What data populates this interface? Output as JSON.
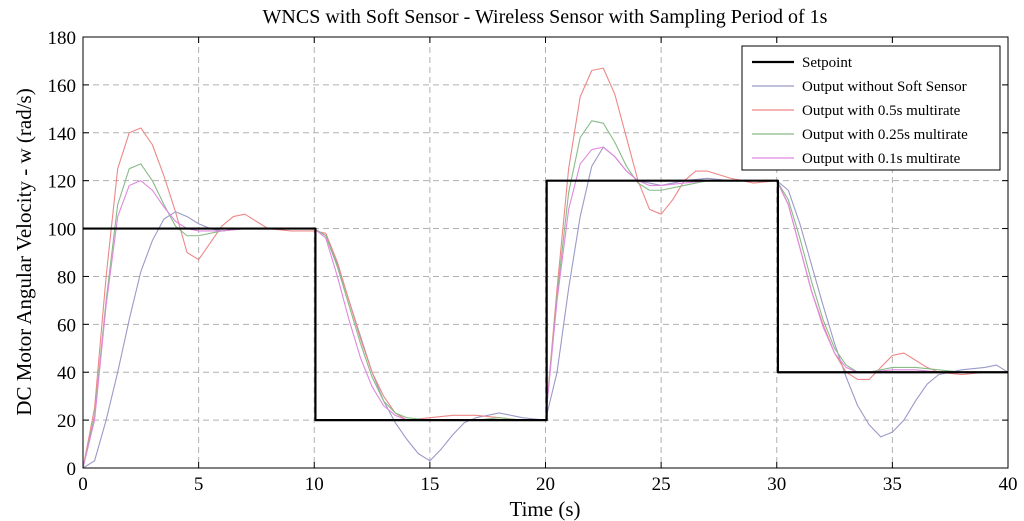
{
  "chart_data": {
    "type": "line",
    "title": "WNCS with Soft Sensor - Wireless Sensor with Sampling Period of 1s",
    "xlabel": "Time (s)",
    "ylabel": "DC Motor Angular Velocity - w (rad/s)",
    "xlim": [
      0,
      40
    ],
    "ylim": [
      0,
      180
    ],
    "xticks": [
      0,
      5,
      10,
      15,
      20,
      25,
      30,
      35,
      40
    ],
    "yticks": [
      0,
      20,
      40,
      60,
      80,
      100,
      120,
      140,
      160,
      180
    ],
    "grid": true,
    "legend_position": "top-right",
    "series": [
      {
        "name": "Setpoint",
        "color": "#000000",
        "points": [
          [
            0,
            100
          ],
          [
            10.05,
            100
          ],
          [
            10.05,
            20
          ],
          [
            20.05,
            20
          ],
          [
            20.05,
            120
          ],
          [
            30.05,
            120
          ],
          [
            30.05,
            40
          ],
          [
            40,
            40
          ]
        ]
      },
      {
        "name": "Output without Soft Sensor",
        "color": "#9a9ac8",
        "points": [
          [
            0,
            0
          ],
          [
            0.5,
            3
          ],
          [
            1,
            20
          ],
          [
            1.5,
            40
          ],
          [
            2,
            62
          ],
          [
            2.5,
            82
          ],
          [
            3,
            95
          ],
          [
            3.5,
            104
          ],
          [
            4,
            107
          ],
          [
            4.5,
            105
          ],
          [
            5,
            102
          ],
          [
            5.5,
            100
          ],
          [
            6,
            99
          ],
          [
            7,
            100
          ],
          [
            8,
            100
          ],
          [
            9,
            100
          ],
          [
            10,
            100
          ],
          [
            10.5,
            97
          ],
          [
            11,
            85
          ],
          [
            11.5,
            70
          ],
          [
            12,
            55
          ],
          [
            12.5,
            40
          ],
          [
            13,
            28
          ],
          [
            13.5,
            19
          ],
          [
            14,
            12
          ],
          [
            14.5,
            6
          ],
          [
            15,
            3
          ],
          [
            15.5,
            8
          ],
          [
            16,
            14
          ],
          [
            16.5,
            19
          ],
          [
            17,
            21
          ],
          [
            18,
            23
          ],
          [
            19,
            21
          ],
          [
            20,
            20
          ],
          [
            20.5,
            40
          ],
          [
            21,
            75
          ],
          [
            21.5,
            105
          ],
          [
            22,
            126
          ],
          [
            22.5,
            134
          ],
          [
            23,
            130
          ],
          [
            23.5,
            124
          ],
          [
            24,
            120
          ],
          [
            25,
            118
          ],
          [
            26,
            120
          ],
          [
            27,
            121
          ],
          [
            28,
            120
          ],
          [
            29,
            120
          ],
          [
            30,
            120
          ],
          [
            30.5,
            116
          ],
          [
            31,
            102
          ],
          [
            31.5,
            85
          ],
          [
            32,
            68
          ],
          [
            32.5,
            52
          ],
          [
            33,
            38
          ],
          [
            33.5,
            26
          ],
          [
            34,
            18
          ],
          [
            34.5,
            13
          ],
          [
            35,
            15
          ],
          [
            35.5,
            20
          ],
          [
            36,
            28
          ],
          [
            36.5,
            35
          ],
          [
            37,
            39
          ],
          [
            38,
            41
          ],
          [
            39,
            42
          ],
          [
            39.5,
            43
          ],
          [
            40,
            40
          ]
        ]
      },
      {
        "name": "Output with 0.5s multirate",
        "color": "#ee8888",
        "points": [
          [
            0,
            0
          ],
          [
            0.5,
            25
          ],
          [
            1,
            80
          ],
          [
            1.5,
            125
          ],
          [
            2,
            140
          ],
          [
            2.5,
            142
          ],
          [
            3,
            135
          ],
          [
            3.5,
            122
          ],
          [
            4,
            107
          ],
          [
            4.5,
            90
          ],
          [
            5,
            87
          ],
          [
            5.5,
            94
          ],
          [
            6,
            101
          ],
          [
            6.5,
            105
          ],
          [
            7,
            106
          ],
          [
            7.5,
            103
          ],
          [
            8,
            100
          ],
          [
            9,
            99
          ],
          [
            10,
            99
          ],
          [
            10.5,
            98
          ],
          [
            11,
            86
          ],
          [
            11.5,
            70
          ],
          [
            12,
            54
          ],
          [
            12.5,
            40
          ],
          [
            13,
            30
          ],
          [
            13.5,
            23
          ],
          [
            14,
            20
          ],
          [
            15,
            21
          ],
          [
            16,
            22
          ],
          [
            17,
            22
          ],
          [
            18,
            21
          ],
          [
            19,
            20
          ],
          [
            20,
            20
          ],
          [
            20.5,
            75
          ],
          [
            21,
            125
          ],
          [
            21.5,
            155
          ],
          [
            22,
            166
          ],
          [
            22.5,
            167
          ],
          [
            23,
            156
          ],
          [
            23.5,
            138
          ],
          [
            24,
            120
          ],
          [
            24.5,
            108
          ],
          [
            25,
            106
          ],
          [
            25.5,
            112
          ],
          [
            26,
            120
          ],
          [
            26.5,
            124
          ],
          [
            27,
            124
          ],
          [
            28,
            121
          ],
          [
            29,
            119
          ],
          [
            30,
            120
          ],
          [
            30.5,
            110
          ],
          [
            31,
            92
          ],
          [
            31.5,
            74
          ],
          [
            32,
            60
          ],
          [
            32.5,
            48
          ],
          [
            33,
            40
          ],
          [
            33.5,
            37
          ],
          [
            34,
            37
          ],
          [
            34.5,
            42
          ],
          [
            35,
            47
          ],
          [
            35.5,
            48
          ],
          [
            36,
            45
          ],
          [
            36.5,
            42
          ],
          [
            37,
            40
          ],
          [
            38,
            39
          ],
          [
            39,
            40
          ],
          [
            40,
            40
          ]
        ]
      },
      {
        "name": "Output with 0.25s multirate",
        "color": "#88bb88",
        "points": [
          [
            0,
            0
          ],
          [
            0.5,
            22
          ],
          [
            1,
            70
          ],
          [
            1.5,
            110
          ],
          [
            2,
            125
          ],
          [
            2.5,
            127
          ],
          [
            3,
            120
          ],
          [
            3.5,
            110
          ],
          [
            4,
            101
          ],
          [
            4.5,
            97
          ],
          [
            5,
            97
          ],
          [
            6,
            99
          ],
          [
            7,
            100
          ],
          [
            8,
            100
          ],
          [
            9,
            100
          ],
          [
            10,
            100
          ],
          [
            10.5,
            97
          ],
          [
            11,
            84
          ],
          [
            11.5,
            68
          ],
          [
            12,
            52
          ],
          [
            12.5,
            38
          ],
          [
            13,
            28
          ],
          [
            13.5,
            23
          ],
          [
            14,
            21
          ],
          [
            15,
            20
          ],
          [
            16,
            20
          ],
          [
            17,
            20
          ],
          [
            18,
            21
          ],
          [
            19,
            20
          ],
          [
            20,
            20
          ],
          [
            20.5,
            72
          ],
          [
            21,
            115
          ],
          [
            21.5,
            138
          ],
          [
            22,
            145
          ],
          [
            22.5,
            144
          ],
          [
            23,
            136
          ],
          [
            23.5,
            126
          ],
          [
            24,
            119
          ],
          [
            24.5,
            116
          ],
          [
            25,
            116
          ],
          [
            26,
            118
          ],
          [
            27,
            120
          ],
          [
            28,
            120
          ],
          [
            29,
            120
          ],
          [
            30,
            120
          ],
          [
            30.5,
            112
          ],
          [
            31,
            96
          ],
          [
            31.5,
            78
          ],
          [
            32,
            62
          ],
          [
            32.5,
            50
          ],
          [
            33,
            43
          ],
          [
            33.5,
            40
          ],
          [
            34,
            40
          ],
          [
            35,
            42
          ],
          [
            36,
            42
          ],
          [
            37,
            41
          ],
          [
            38,
            40
          ],
          [
            39,
            40
          ],
          [
            40,
            40
          ]
        ]
      },
      {
        "name": "Output with 0.1s multirate",
        "color": "#e088e0",
        "points": [
          [
            0,
            0
          ],
          [
            0.5,
            20
          ],
          [
            1,
            68
          ],
          [
            1.5,
            105
          ],
          [
            2,
            118
          ],
          [
            2.5,
            120
          ],
          [
            3,
            116
          ],
          [
            3.5,
            109
          ],
          [
            4,
            103
          ],
          [
            4.5,
            100
          ],
          [
            5,
            99
          ],
          [
            6,
            99
          ],
          [
            7,
            100
          ],
          [
            8,
            100
          ],
          [
            9,
            100
          ],
          [
            10,
            100
          ],
          [
            10.5,
            96
          ],
          [
            11,
            80
          ],
          [
            11.5,
            62
          ],
          [
            12,
            46
          ],
          [
            12.5,
            34
          ],
          [
            13,
            26
          ],
          [
            13.5,
            22
          ],
          [
            14,
            20
          ],
          [
            15,
            20
          ],
          [
            16,
            20
          ],
          [
            17,
            20
          ],
          [
            18,
            20
          ],
          [
            19,
            20
          ],
          [
            20,
            20
          ],
          [
            20.5,
            70
          ],
          [
            21,
            108
          ],
          [
            21.5,
            127
          ],
          [
            22,
            133
          ],
          [
            22.5,
            134
          ],
          [
            23,
            130
          ],
          [
            23.5,
            124
          ],
          [
            24,
            120
          ],
          [
            24.5,
            118
          ],
          [
            25,
            118
          ],
          [
            26,
            119
          ],
          [
            27,
            120
          ],
          [
            28,
            120
          ],
          [
            29,
            120
          ],
          [
            30,
            120
          ],
          [
            30.5,
            110
          ],
          [
            31,
            92
          ],
          [
            31.5,
            74
          ],
          [
            32,
            59
          ],
          [
            32.5,
            48
          ],
          [
            33,
            42
          ],
          [
            33.5,
            40
          ],
          [
            34,
            40
          ],
          [
            35,
            41
          ],
          [
            36,
            41
          ],
          [
            37,
            40
          ],
          [
            38,
            40
          ],
          [
            39,
            40
          ],
          [
            40,
            40
          ]
        ]
      }
    ]
  }
}
